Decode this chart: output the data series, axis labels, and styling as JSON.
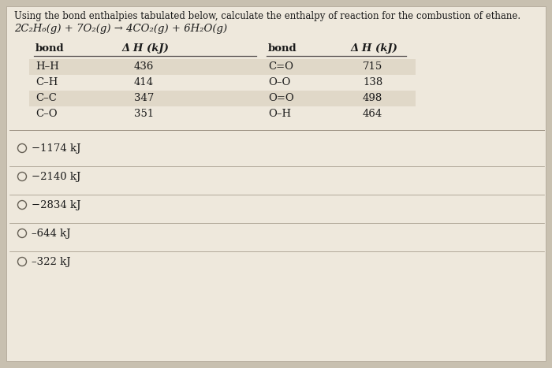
{
  "title_line1": "Using the bond enthalpies tabulated below, calculate the enthalpy of reaction for the combustion of ethane.",
  "title_line2": "2C₂H₆(g) + 7O₂(g) → 4CO₂(g) + 6H₂O(g)",
  "table_left": {
    "headers": [
      "bond",
      "Δ H (kJ)"
    ],
    "rows": [
      [
        "H–H",
        "436"
      ],
      [
        "C–H",
        "414"
      ],
      [
        "C–C",
        "347"
      ],
      [
        "C–O",
        "351"
      ]
    ]
  },
  "table_right": {
    "headers": [
      "bond",
      "Δ H (kJ)"
    ],
    "rows": [
      [
        "C=O",
        "715"
      ],
      [
        "O–O",
        "138"
      ],
      [
        "O=O",
        "498"
      ],
      [
        "O–H",
        "464"
      ]
    ]
  },
  "choices": [
    "−1174 kJ",
    "−2140 kJ",
    "−2834 kJ",
    "–644 kJ",
    "–322 kJ"
  ],
  "outer_bg": "#c8c0b0",
  "inner_bg": "#eee8dc",
  "row_alt_bg": "#e0d8c8",
  "text_color": "#1a1a1a",
  "line_color": "#9a9080",
  "header_line_color": "#555050"
}
